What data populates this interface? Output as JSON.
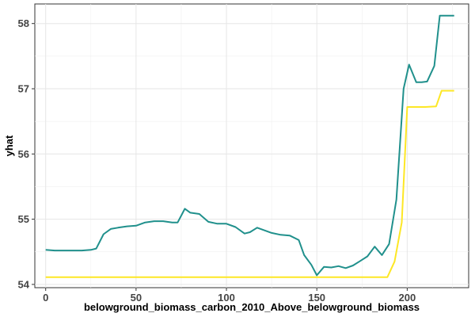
{
  "chart_data": {
    "type": "line",
    "xlabel": "belowground_biomass_carbon_2010_Above_belowground_biomass",
    "ylabel": "yhat",
    "xlim": [
      -6,
      234
    ],
    "ylim": [
      53.95,
      58.3
    ],
    "x_ticks": [
      0,
      50,
      100,
      150,
      200
    ],
    "y_ticks": [
      54,
      55,
      56,
      57,
      58
    ],
    "grid": true,
    "legend": "none",
    "series": [
      {
        "color": "#20908C",
        "x": [
          0,
          5,
          10,
          15,
          20,
          25,
          28,
          32,
          36,
          40,
          45,
          50,
          55,
          60,
          65,
          70,
          73,
          77,
          80,
          85,
          90,
          95,
          100,
          105,
          110,
          113,
          117,
          120,
          125,
          130,
          135,
          140,
          143,
          147,
          150,
          154,
          158,
          162,
          166,
          170,
          174,
          178,
          182,
          186,
          190,
          194,
          198,
          201,
          205,
          208,
          211,
          215,
          218,
          222,
          226
        ],
        "y": [
          54.53,
          54.52,
          54.52,
          54.52,
          54.52,
          54.53,
          54.55,
          54.77,
          54.85,
          54.87,
          54.89,
          54.9,
          54.95,
          54.97,
          54.97,
          54.95,
          54.95,
          55.16,
          55.1,
          55.08,
          54.96,
          54.93,
          54.93,
          54.88,
          54.78,
          54.8,
          54.87,
          54.84,
          54.79,
          54.76,
          54.75,
          54.68,
          54.45,
          54.3,
          54.14,
          54.27,
          54.26,
          54.28,
          54.25,
          54.29,
          54.36,
          54.43,
          54.58,
          54.45,
          54.62,
          55.3,
          57.0,
          57.37,
          57.1,
          57.1,
          57.11,
          57.35,
          58.12,
          58.12,
          58.12
        ]
      },
      {
        "color": "#FDE725",
        "x": [
          0,
          50,
          100,
          150,
          180,
          189,
          193,
          197,
          200,
          205,
          210,
          216,
          219,
          224,
          226
        ],
        "y": [
          54.11,
          54.11,
          54.11,
          54.11,
          54.11,
          54.11,
          54.35,
          54.95,
          56.72,
          56.72,
          56.72,
          56.73,
          56.97,
          56.97,
          56.97
        ]
      }
    ]
  }
}
